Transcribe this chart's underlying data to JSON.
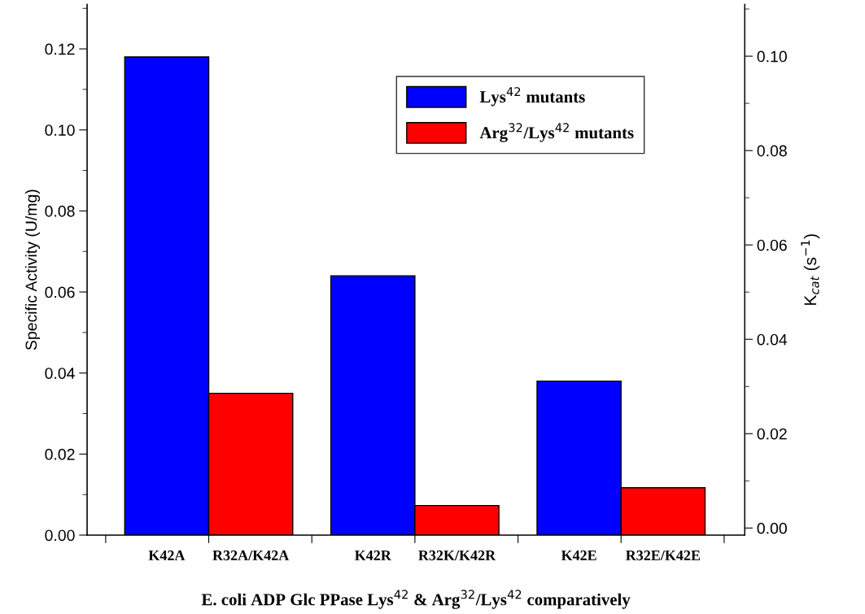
{
  "chart_data": {
    "type": "bar",
    "categories": [
      "K42A",
      "R32A/K42A",
      "K42R",
      "R32K/K42R",
      "K42E",
      "R32E/K42E"
    ],
    "series": [
      {
        "name": "Lys$^{42}$ mutants",
        "color": "#0000ff",
        "values": [
          0.118,
          null,
          0.064,
          null,
          0.038,
          null
        ]
      },
      {
        "name": "Arg$^{32}$/Lys$^{42}$ mutants",
        "color": "#ff0000",
        "values": [
          null,
          0.035,
          null,
          0.0073,
          null,
          0.0117
        ]
      }
    ],
    "xlabel": "E. coli ADP Glc PPase Lys$^{42}$ & Arg$^{32}$/Lys$^{42}$ comparatively",
    "ylabel": "Specific Activity (U/mg)",
    "y2label": "K$_{cat}$ (s$^{−1}$)",
    "ylim": [
      0,
      0.131
    ],
    "yticks": [
      {
        "value": 0,
        "label": "0.00"
      },
      {
        "value": 0.02,
        "label": "0.02"
      },
      {
        "value": 0.04,
        "label": "0.04"
      },
      {
        "value": 0.06,
        "label": "0.06"
      },
      {
        "value": 0.08,
        "label": "0.08"
      },
      {
        "value": 0.1,
        "label": "0.10"
      },
      {
        "value": 0.12,
        "label": "0.12"
      }
    ],
    "y2lim": [
      -0.0015,
      0.111
    ],
    "y2ticks": [
      {
        "value": 0,
        "label": "0.00"
      },
      {
        "value": 0.02,
        "label": "0.02"
      },
      {
        "value": 0.04,
        "label": "0.04"
      },
      {
        "value": 0.06,
        "label": "0.06"
      },
      {
        "value": 0.08,
        "label": "0.08"
      },
      {
        "value": 0.1,
        "label": "0.10"
      }
    ],
    "legend": "top right",
    "grid": false
  }
}
